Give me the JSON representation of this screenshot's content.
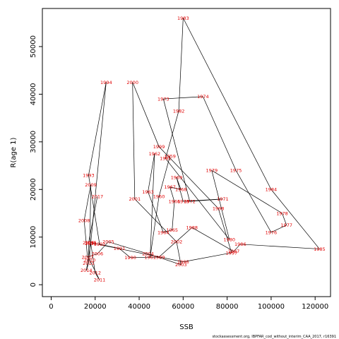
{
  "chart_data": {
    "type": "line",
    "xlabel": "SSB",
    "ylabel": "R(age 1)",
    "xlim": [
      -4000,
      127000
    ],
    "ylim": [
      -2500,
      58000
    ],
    "x_ticks": [
      0,
      20000,
      40000,
      60000,
      80000,
      100000,
      120000
    ],
    "x_tick_labels": [
      "0",
      "20000",
      "40000",
      "60000",
      "80000",
      "100000",
      "120000"
    ],
    "y_ticks": [
      0,
      10000,
      20000,
      30000,
      40000,
      50000
    ],
    "y_tick_labels": [
      "0",
      "10000",
      "20000",
      "30000",
      "40000",
      "50000"
    ],
    "footer": "stockassessment.org, IBPFAR_cod_without_interim_CAA_2017, r16391",
    "points": [
      {
        "year": "1959",
        "ssb": 54000,
        "r": 27000
      },
      {
        "year": "1960",
        "ssb": 49000,
        "r": 18500
      },
      {
        "year": "1961",
        "ssb": 45000,
        "r": 5800
      },
      {
        "year": "1962",
        "ssb": 47000,
        "r": 27500
      },
      {
        "year": "1963",
        "ssb": 44000,
        "r": 19500
      },
      {
        "year": "1964",
        "ssb": 51000,
        "r": 11000
      },
      {
        "year": "1965",
        "ssb": 55000,
        "r": 11500
      },
      {
        "year": "1966",
        "ssb": 56000,
        "r": 17500
      },
      {
        "year": "1967",
        "ssb": 54000,
        "r": 20500
      },
      {
        "year": "1968",
        "ssb": 59000,
        "r": 20000
      },
      {
        "year": "1969",
        "ssb": 57000,
        "r": 22500
      },
      {
        "year": "1970",
        "ssb": 60000,
        "r": 17500
      },
      {
        "year": "1971",
        "ssb": 78000,
        "r": 18000
      },
      {
        "year": "1972",
        "ssb": 63000,
        "r": 17500
      },
      {
        "year": "1973",
        "ssb": 51000,
        "r": 39000
      },
      {
        "year": "1974",
        "ssb": 69000,
        "r": 39500
      },
      {
        "year": "1975",
        "ssb": 84000,
        "r": 24000
      },
      {
        "year": "1976",
        "ssb": 100000,
        "r": 11000
      },
      {
        "year": "1977",
        "ssb": 107000,
        "r": 12500
      },
      {
        "year": "1978",
        "ssb": 105000,
        "r": 15000
      },
      {
        "year": "1979",
        "ssb": 73000,
        "r": 24000
      },
      {
        "year": "1980",
        "ssb": 81000,
        "r": 9500
      },
      {
        "year": "1981",
        "ssb": 52000,
        "r": 26500
      },
      {
        "year": "1982",
        "ssb": 58000,
        "r": 36500
      },
      {
        "year": "1983",
        "ssb": 60000,
        "r": 56000
      },
      {
        "year": "1984",
        "ssb": 100000,
        "r": 20000
      },
      {
        "year": "1985",
        "ssb": 122000,
        "r": 7500
      },
      {
        "year": "1986",
        "ssb": 86000,
        "r": 8500
      },
      {
        "year": "1987",
        "ssb": 83000,
        "r": 7000
      },
      {
        "year": "1988",
        "ssb": 64000,
        "r": 12000
      },
      {
        "year": "1989",
        "ssb": 49000,
        "r": 5800
      },
      {
        "year": "1990",
        "ssb": 36000,
        "r": 5700
      },
      {
        "year": "1991",
        "ssb": 31000,
        "r": 7600
      },
      {
        "year": "1992",
        "ssb": 22000,
        "r": 8500
      },
      {
        "year": "1993",
        "ssb": 17000,
        "r": 23000
      },
      {
        "year": "1994",
        "ssb": 25000,
        "r": 42500
      },
      {
        "year": "1995",
        "ssb": 18000,
        "r": 8800
      },
      {
        "year": "1996",
        "ssb": 60000,
        "r": 4800
      },
      {
        "year": "1997",
        "ssb": 82000,
        "r": 6700
      },
      {
        "year": "1998",
        "ssb": 76000,
        "r": 16000
      },
      {
        "year": "1999",
        "ssb": 49000,
        "r": 29000
      },
      {
        "year": "2000",
        "ssb": 37000,
        "r": 42500
      },
      {
        "year": "2001",
        "ssb": 38000,
        "r": 18000
      },
      {
        "year": "2002",
        "ssb": 57000,
        "r": 9000
      },
      {
        "year": "2003",
        "ssb": 59000,
        "r": 4200
      },
      {
        "year": "2004",
        "ssb": 44000,
        "r": 6500
      },
      {
        "year": "2005",
        "ssb": 26000,
        "r": 9000
      },
      {
        "year": "2006",
        "ssb": 21000,
        "r": 6500
      },
      {
        "year": "2007",
        "ssb": 16500,
        "r": 5800
      },
      {
        "year": "2008",
        "ssb": 15000,
        "r": 13500
      },
      {
        "year": "2009",
        "ssb": 18000,
        "r": 21000
      },
      {
        "year": "2010",
        "ssb": 17500,
        "r": 5200
      },
      {
        "year": "2011",
        "ssb": 22000,
        "r": 1000
      },
      {
        "year": "2012",
        "ssb": 20000,
        "r": 2500
      },
      {
        "year": "2013",
        "ssb": 18000,
        "r": 8700
      },
      {
        "year": "2014",
        "ssb": 16000,
        "r": 3000
      },
      {
        "year": "2015",
        "ssb": 17000,
        "r": 4500
      },
      {
        "year": "2016",
        "ssb": 17000,
        "r": 8800
      },
      {
        "year": "2017",
        "ssb": 21000,
        "r": 18500
      }
    ]
  }
}
